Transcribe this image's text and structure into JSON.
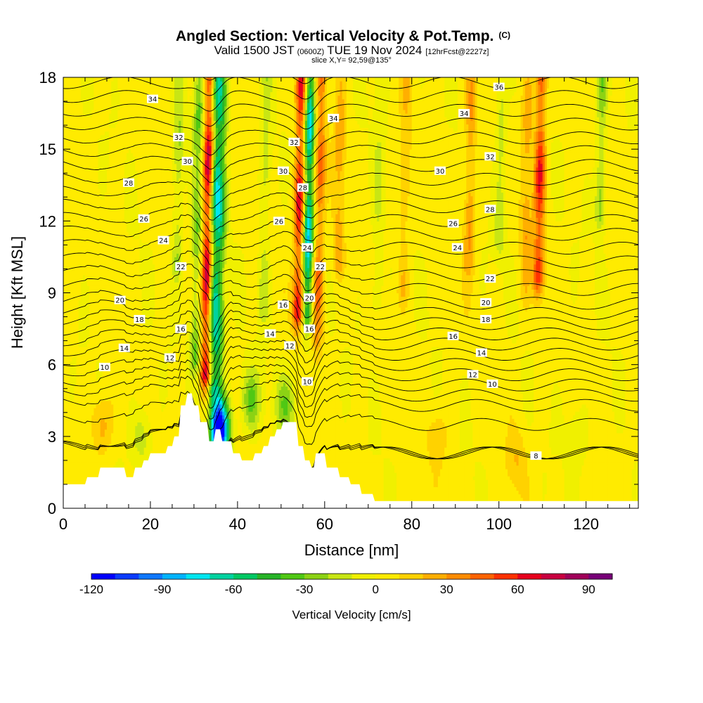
{
  "chart_data": {
    "type": "heatmap",
    "title": "Angled Section: Vertical Velocity & Pot.Temp.",
    "title_unit": "(C)",
    "subtitle_valid": "Valid 1500 JST",
    "subtitle_utc": "(0600Z)",
    "subtitle_date": "TUE 19 Nov 2024",
    "subtitle_fcst": "[12hrFcst@2227z]",
    "slice_label": "slice X,Y= 92,59@135°",
    "xlabel": "Distance [nm]",
    "ylabel": "Height [Kft MSL]",
    "xlim": [
      0,
      132
    ],
    "ylim": [
      0,
      18
    ],
    "x_ticks": [
      0,
      20,
      40,
      60,
      80,
      100,
      120
    ],
    "y_ticks": [
      0,
      3,
      6,
      9,
      12,
      15,
      18
    ],
    "colorbar": {
      "label": "Vertical Velocity [cm/s]",
      "range": [
        -120,
        100
      ],
      "step": 10,
      "tick_values": [
        -120,
        -90,
        -60,
        -30,
        0,
        30,
        60,
        90
      ],
      "colors": [
        "#0000ff",
        "#0a3cff",
        "#0f78ff",
        "#00b4ff",
        "#00e6f0",
        "#00d2a0",
        "#00c864",
        "#28b428",
        "#50c814",
        "#8cd214",
        "#c8e614",
        "#f0f000",
        "#ffeb00",
        "#ffd200",
        "#ffaf00",
        "#ff8c00",
        "#ff6400",
        "#ff3200",
        "#e6001e",
        "#c80041",
        "#a0005a",
        "#780078"
      ]
    },
    "field": {
      "base_value": 3,
      "velocity_columns": [
        {
          "x": 33.0,
          "z_bottom": 5.5,
          "value": 85
        },
        {
          "x": 34.5,
          "z_bottom": 5.0,
          "value": -70
        },
        {
          "x": 30.5,
          "z_bottom": 6.0,
          "value": -35
        },
        {
          "x": 36.0,
          "z_bottom": 2.0,
          "value": -45
        },
        {
          "x": 54.0,
          "z_bottom": 8.0,
          "value": 70
        },
        {
          "x": 56.0,
          "z_bottom": 8.0,
          "value": -85
        },
        {
          "x": 58.5,
          "z_bottom": 7.0,
          "value": 45
        },
        {
          "x": 109.0,
          "z_bottom": 9.5,
          "value": 60
        },
        {
          "x": 106.0,
          "z_bottom": 9.0,
          "value": 25
        },
        {
          "x": 93.0,
          "z_bottom": 10.0,
          "value": 30
        },
        {
          "x": 78.0,
          "z_bottom": 9.0,
          "value": 20
        },
        {
          "x": 72.0,
          "z_bottom": 8.5,
          "value": -15
        },
        {
          "x": 100.0,
          "z_bottom": 11.0,
          "value": -20
        },
        {
          "x": 123.0,
          "z_bottom": 12.0,
          "value": -30
        },
        {
          "x": 26.0,
          "z_bottom": 10.0,
          "value": -25
        },
        {
          "x": 46.0,
          "z_bottom": 8.0,
          "value": -20
        },
        {
          "x": 63.0,
          "z_bottom": 10.0,
          "value": 25
        }
      ],
      "low_level_cells": [
        {
          "x": 9.0,
          "z": 3.5,
          "value": 25
        },
        {
          "x": 18.0,
          "z": 3.0,
          "value": -20
        },
        {
          "x": 36.0,
          "z": 3.3,
          "value": -110
        },
        {
          "x": 43.0,
          "z": 4.5,
          "value": -35
        },
        {
          "x": 51.0,
          "z": 4.3,
          "value": -30
        },
        {
          "x": 86.0,
          "z": 3.0,
          "value": 15
        },
        {
          "x": 104.0,
          "z": 2.0,
          "value": 15
        },
        {
          "x": 118.0,
          "z": 3.0,
          "value": -15
        }
      ]
    },
    "terrain": [
      [
        0,
        1.0
      ],
      [
        5,
        1.0
      ],
      [
        5.5,
        1.3
      ],
      [
        8,
        1.3
      ],
      [
        8.5,
        1.7
      ],
      [
        14,
        1.7
      ],
      [
        14.5,
        1.3
      ],
      [
        16,
        1.3
      ],
      [
        16.5,
        1.7
      ],
      [
        18,
        1.7
      ],
      [
        18.5,
        2.0
      ],
      [
        19.5,
        2.0
      ],
      [
        20,
        2.3
      ],
      [
        23.5,
        2.3
      ],
      [
        24,
        2.6
      ],
      [
        25,
        2.6
      ],
      [
        25.5,
        3.0
      ],
      [
        26.5,
        3.0
      ],
      [
        27,
        4.3
      ],
      [
        28,
        4.3
      ],
      [
        28.5,
        4.8
      ],
      [
        29.5,
        4.8
      ],
      [
        30,
        4.3
      ],
      [
        31,
        4.3
      ],
      [
        31.5,
        3.6
      ],
      [
        33,
        3.6
      ],
      [
        33.5,
        2.8
      ],
      [
        34.5,
        2.8
      ],
      [
        35,
        3.3
      ],
      [
        36,
        3.3
      ],
      [
        36.5,
        2.8
      ],
      [
        38.5,
        2.8
      ],
      [
        39,
        2.3
      ],
      [
        40.5,
        2.3
      ],
      [
        41,
        2.0
      ],
      [
        43.5,
        2.0
      ],
      [
        44,
        2.3
      ],
      [
        45.5,
        2.3
      ],
      [
        46,
        2.6
      ],
      [
        47,
        2.6
      ],
      [
        47.5,
        3.0
      ],
      [
        48.5,
        3.0
      ],
      [
        49,
        3.3
      ],
      [
        50,
        3.3
      ],
      [
        50.5,
        3.6
      ],
      [
        53.5,
        3.6
      ],
      [
        54,
        2.6
      ],
      [
        55,
        2.6
      ],
      [
        55.5,
        2.0
      ],
      [
        56.5,
        2.0
      ],
      [
        57,
        1.7
      ],
      [
        57.5,
        1.7
      ],
      [
        58,
        2.3
      ],
      [
        60,
        2.3
      ],
      [
        60.5,
        1.7
      ],
      [
        63,
        1.7
      ],
      [
        63.5,
        1.3
      ],
      [
        65.5,
        1.3
      ],
      [
        66,
        1.0
      ],
      [
        68,
        1.0
      ],
      [
        68.5,
        0.6
      ],
      [
        71,
        0.6
      ],
      [
        71.5,
        0.3
      ],
      [
        132,
        0.3
      ]
    ],
    "theta_isentropes": {
      "levels": [
        8,
        10,
        12,
        14,
        16,
        18,
        20,
        22,
        24,
        26,
        28,
        30,
        32,
        34,
        36
      ],
      "spacing_all_lines_c": 1
    },
    "theta_labels": [
      {
        "x": 108.5,
        "z": 2.2,
        "text": "8"
      },
      {
        "x": 9.5,
        "z": 5.9,
        "text": "10"
      },
      {
        "x": 56.0,
        "z": 5.3,
        "text": "10"
      },
      {
        "x": 98.5,
        "z": 5.2,
        "text": "10"
      },
      {
        "x": 24.5,
        "z": 6.3,
        "text": "12"
      },
      {
        "x": 52.0,
        "z": 6.8,
        "text": "12"
      },
      {
        "x": 94.0,
        "z": 5.6,
        "text": "12"
      },
      {
        "x": 14.0,
        "z": 6.7,
        "text": "14"
      },
      {
        "x": 47.5,
        "z": 7.3,
        "text": "14"
      },
      {
        "x": 96.0,
        "z": 6.5,
        "text": "14"
      },
      {
        "x": 27.0,
        "z": 7.5,
        "text": "16"
      },
      {
        "x": 50.5,
        "z": 8.5,
        "text": "16"
      },
      {
        "x": 56.5,
        "z": 7.5,
        "text": "16"
      },
      {
        "x": 89.5,
        "z": 7.2,
        "text": "16"
      },
      {
        "x": 17.5,
        "z": 7.9,
        "text": "18"
      },
      {
        "x": 97.0,
        "z": 7.9,
        "text": "18"
      },
      {
        "x": 13.0,
        "z": 8.7,
        "text": "20"
      },
      {
        "x": 56.5,
        "z": 8.8,
        "text": "20"
      },
      {
        "x": 97.0,
        "z": 8.6,
        "text": "20"
      },
      {
        "x": 27.0,
        "z": 10.1,
        "text": "22"
      },
      {
        "x": 59.0,
        "z": 10.1,
        "text": "22"
      },
      {
        "x": 98.0,
        "z": 9.6,
        "text": "22"
      },
      {
        "x": 23.0,
        "z": 11.2,
        "text": "24"
      },
      {
        "x": 56.0,
        "z": 10.9,
        "text": "24"
      },
      {
        "x": 90.5,
        "z": 10.9,
        "text": "24"
      },
      {
        "x": 18.5,
        "z": 12.1,
        "text": "26"
      },
      {
        "x": 49.5,
        "z": 12.0,
        "text": "26"
      },
      {
        "x": 89.5,
        "z": 11.9,
        "text": "26"
      },
      {
        "x": 15.0,
        "z": 13.6,
        "text": "28"
      },
      {
        "x": 55.0,
        "z": 13.4,
        "text": "28"
      },
      {
        "x": 98.0,
        "z": 12.5,
        "text": "28"
      },
      {
        "x": 28.5,
        "z": 14.5,
        "text": "30"
      },
      {
        "x": 50.5,
        "z": 14.1,
        "text": "30"
      },
      {
        "x": 86.5,
        "z": 14.1,
        "text": "30"
      },
      {
        "x": 26.5,
        "z": 15.5,
        "text": "32"
      },
      {
        "x": 53.0,
        "z": 15.3,
        "text": "32"
      },
      {
        "x": 98.0,
        "z": 14.7,
        "text": "32"
      },
      {
        "x": 20.5,
        "z": 17.1,
        "text": "34"
      },
      {
        "x": 62.0,
        "z": 16.3,
        "text": "34"
      },
      {
        "x": 92.0,
        "z": 16.5,
        "text": "34"
      },
      {
        "x": 100.0,
        "z": 17.6,
        "text": "36"
      }
    ]
  }
}
